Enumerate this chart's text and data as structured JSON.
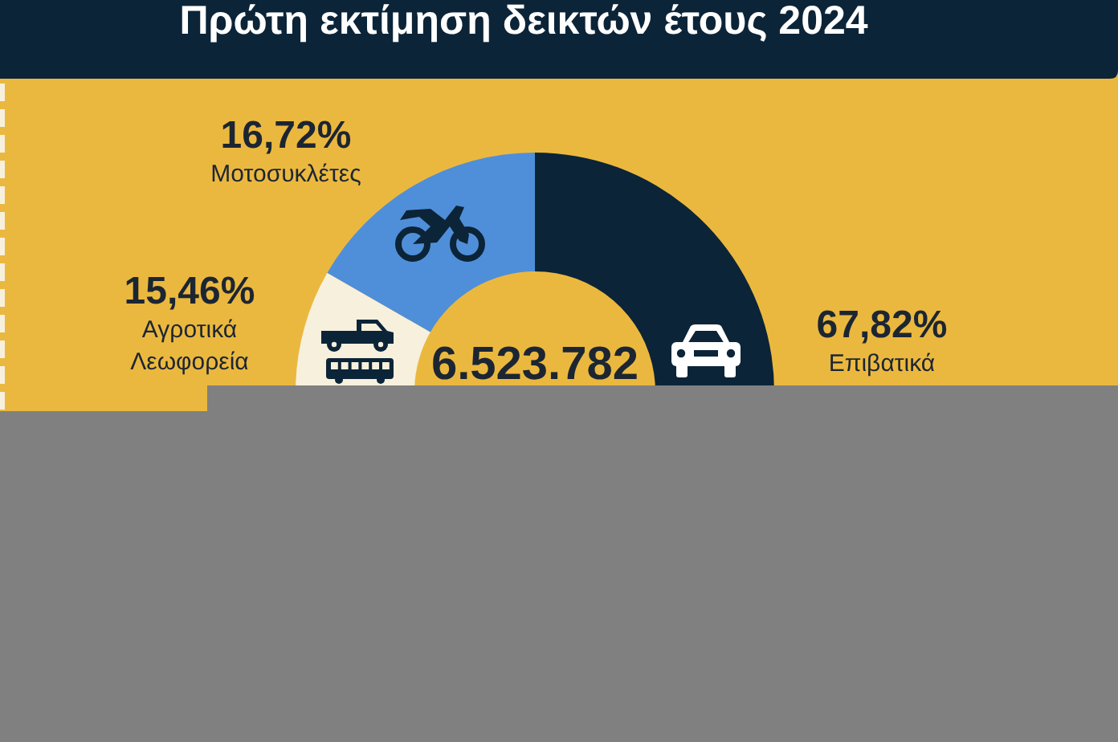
{
  "chart_data": {
    "type": "donut",
    "title": "Πρώτη εκτίμηση δεικτών έτους 2024",
    "categories": [
      "Επιβατικά",
      "Αγροτικά Λεωφορεία",
      "Μοτοσυκλέτες"
    ],
    "values": [
      67.82,
      15.46,
      16.72
    ],
    "colors": [
      "#0c2438",
      "#f7f0dd",
      "#4f8fd9"
    ],
    "value_labels": [
      "67,82%",
      "15,46%",
      "16,72%"
    ],
    "annotations": [
      "6.523.782"
    ]
  }
}
